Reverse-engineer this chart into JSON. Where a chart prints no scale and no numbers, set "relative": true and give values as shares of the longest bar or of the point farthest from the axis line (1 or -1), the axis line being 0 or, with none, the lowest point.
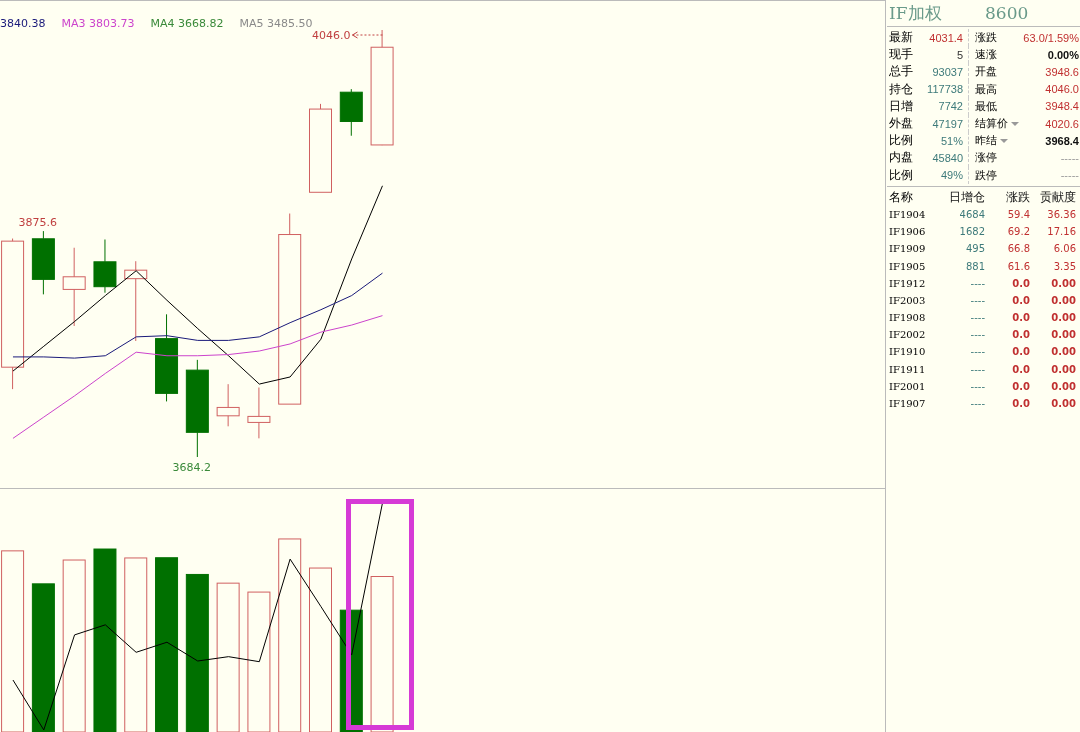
{
  "chart_data": [
    {
      "type": "candlestick",
      "categories": [
        null,
        null,
        null,
        null,
        null,
        null,
        null,
        null,
        null,
        null,
        null,
        null,
        null
      ],
      "ohlc": [
        [
          3760.3,
          3869.3,
          3741.7,
          3867.1
        ],
        [
          3869.1,
          3875.6,
          3822.0,
          3834.7
        ],
        [
          3826.2,
          3861.5,
          3795.2,
          3836.9
        ],
        [
          3849.6,
          3868.5,
          3823.4,
          3828.5
        ],
        [
          3835.3,
          3850.1,
          3782.5,
          3842.5
        ],
        [
          3784.5,
          3805.1,
          3731.3,
          3738.1
        ],
        [
          3757.8,
          3766.5,
          3684.2,
          3705.1
        ],
        [
          3719.1,
          3745.9,
          3710.2,
          3726.2
        ],
        [
          3713.5,
          3743.1,
          3700.0,
          3718.6
        ],
        [
          3729.0,
          3890.5,
          3729.0,
          3872.7
        ],
        [
          3908.5,
          3983.4,
          3908.5,
          3979.0
        ],
        [
          3993.3,
          3995.9,
          3956.4,
          3968.5
        ],
        [
          3948.6,
          4046.0,
          3948.4,
          4031.4
        ]
      ],
      "colors": [
        "#d06060",
        "#007000",
        "#d06060",
        "#007000",
        "#d06060",
        "#007000",
        "#007000",
        "#d06060",
        "#d06060",
        "#d06060",
        "#d06060",
        "#007000",
        "#d06060"
      ],
      "series": [
        {
          "type": "line",
          "color": "#000000",
          "values": [
            3757,
            3778,
            3799,
            3821,
            3842,
            3817,
            3793,
            3770,
            3746,
            3752,
            3784,
            3852,
            3914
          ]
        },
        {
          "type": "line",
          "name": "3840.38",
          "color": "#1a1a7a",
          "values": [
            3769,
            3769,
            3768,
            3770,
            3786,
            3787,
            3783,
            3783,
            3786,
            3798,
            3809,
            3821,
            3840
          ]
        },
        {
          "type": "line",
          "name": "MA3 3803.73",
          "color": "#cc44cc",
          "values": [
            3700,
            3718,
            3736,
            3755,
            3773,
            3770,
            3770,
            3771,
            3774,
            3780,
            3790,
            3796,
            3804
          ]
        },
        {
          "type": "line",
          "name": "MA4 3668.82",
          "color": "#3a8a3a",
          "values": [
            null,
            null,
            null,
            null,
            null,
            null,
            null,
            null,
            null,
            null,
            null,
            null,
            null
          ]
        },
        {
          "type": "line",
          "name": "MA5 3485.50",
          "color": "#8a8a8a",
          "values": [
            null,
            null,
            null,
            null,
            null,
            null,
            null,
            null,
            null,
            null,
            null,
            null,
            null
          ]
        }
      ],
      "legend": "top left",
      "marker": "none",
      "annotations": [
        "4046.0",
        "3875.6",
        "3684.2"
      ]
    },
    {
      "type": "bar",
      "relative": true,
      "categories": [
        null,
        null,
        null,
        null,
        null,
        null,
        null,
        null,
        null,
        null,
        null,
        null,
        null
      ],
      "series": [
        {
          "type": "bar",
          "colors": [
            "#d06060",
            "#007000",
            "#d06060",
            "#007000",
            "#d06060",
            "#007000",
            "#007000",
            "#d06060",
            "#d06060",
            "#d06060",
            "#d06060",
            "#007000",
            "#d06060"
          ],
          "values": [
            0.791,
            0.647,
            0.751,
            0.799,
            0.76,
            0.761,
            0.688,
            0.65,
            0.611,
            0.843,
            0.716,
            0.532,
            0.679
          ]
        },
        {
          "type": "line",
          "color": "#000000",
          "values": [
            0.227,
            0.009,
            0.424,
            0.468,
            0.348,
            0.392,
            0.31,
            0.329,
            0.307,
            0.755,
            0.548,
            0.337,
            1
          ]
        }
      ],
      "marker": "none"
    },
    {
      "type": "other",
      "title": "IF加权",
      "subtitle": "8600",
      "annotations": [
        "最新",
        "4031.4",
        "涨跌",
        "63.0/1.59%",
        "现手",
        "5",
        "速涨",
        "0.00%",
        "总手",
        "93037",
        "开盘",
        "3948.6",
        "持仓",
        "117738",
        "最高",
        "4046.0",
        "日增",
        "7742",
        "最低",
        "3948.4",
        "外盘",
        "47197",
        "结算价",
        "4020.6",
        "比例",
        "51%",
        "昨结",
        "3968.4",
        "内盘",
        "45840",
        "涨停",
        "-----",
        "比例",
        "49%",
        "跌停",
        "-----",
        "名称",
        "日增仓",
        "涨跌",
        "贡献度",
        "IF1904",
        "4684",
        "59.4",
        "36.36",
        "IF1906",
        "1682",
        "69.2",
        "17.16",
        "IF1909",
        "495",
        "66.8",
        "6.06",
        "IF1905",
        "881",
        "61.6",
        "3.35",
        "IF1912",
        "----",
        "0.0",
        "0.00",
        "IF2003",
        "----",
        "0.0",
        "0.00",
        "IF1908",
        "----",
        "0.0",
        "0.00",
        "IF2002",
        "----",
        "0.0",
        "0.00",
        "IF1910",
        "----",
        "0.0",
        "0.00",
        "IF1911",
        "----",
        "0.0",
        "0.00",
        "IF2001",
        "----",
        "0.0",
        "0.00",
        "IF1907",
        "----",
        "0.0",
        "0.00"
      ]
    }
  ]
}
